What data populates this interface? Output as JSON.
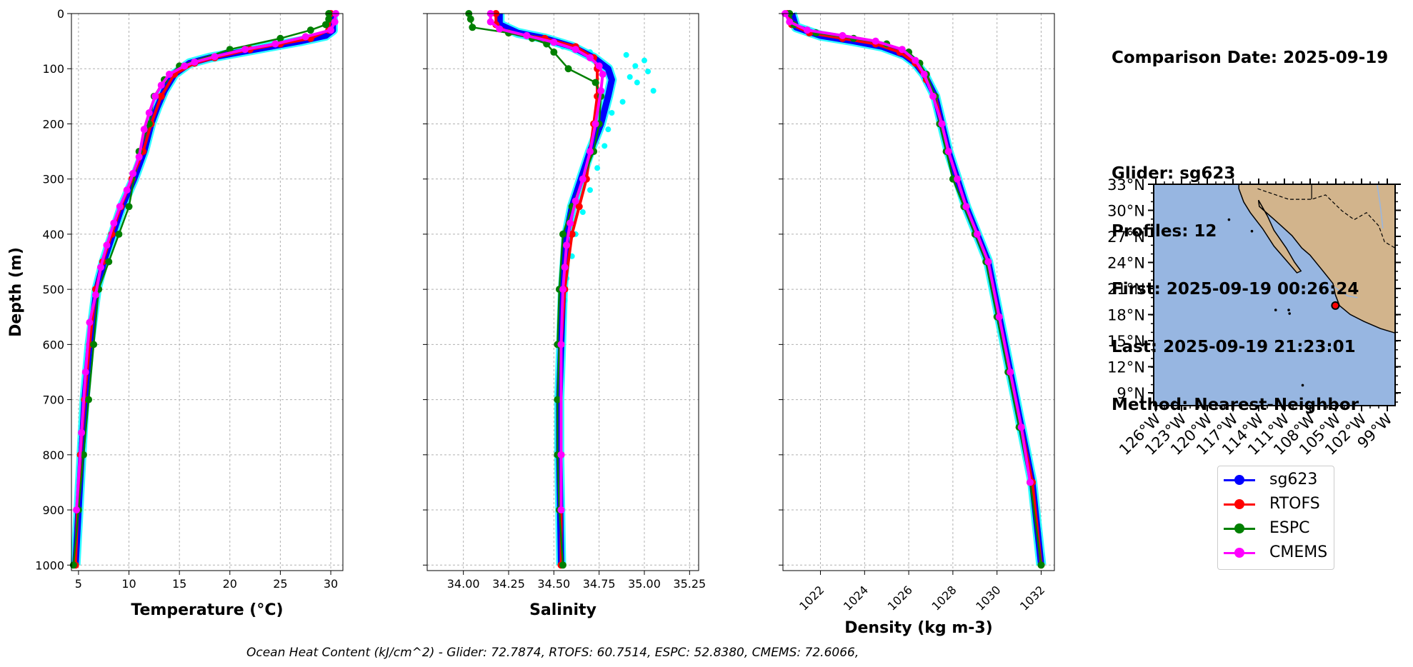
{
  "colors": {
    "sg623": "#0000ff",
    "sg623_scatter": "#00ffff",
    "RTOFS": "#ff0000",
    "ESPC": "#008000",
    "CMEMS": "#ff00ff",
    "ocean": "#97b6e1",
    "land": "#d2b48c"
  },
  "info": {
    "comparison_date": "Comparison Date: 2025-09-19",
    "glider": "Glider: sg623",
    "profiles": "Profiles: 12",
    "first": "First: 2025-09-19 00:26:24",
    "last": "Last: 2025-09-19 21:23:01",
    "method": "Method: Nearest-Neighbor"
  },
  "footer": "Ocean Heat Content (kJ/cm^2) - Glider: 72.7874,  RTOFS: 60.7514,  ESPC: 52.8380,  CMEMS: 72.6066,",
  "legend": [
    {
      "name": "sg623",
      "color": "#0000ff"
    },
    {
      "name": "RTOFS",
      "color": "#ff0000"
    },
    {
      "name": "ESPC",
      "color": "#008000"
    },
    {
      "name": "CMEMS",
      "color": "#ff00ff"
    }
  ],
  "chart_data": [
    {
      "type": "line",
      "xlabel": "Temperature (°C)",
      "ylabel": "Depth (m)",
      "xlim": [
        4.3,
        31.2
      ],
      "ylim": [
        1010,
        0
      ],
      "xticks": [
        5,
        10,
        15,
        20,
        25,
        30
      ],
      "yticks": [
        0,
        100,
        200,
        300,
        400,
        500,
        600,
        700,
        800,
        900,
        1000
      ],
      "grid": true,
      "series": [
        {
          "name": "sg623",
          "x": [
            30.2,
            30.2,
            29.5,
            27,
            24,
            21,
            18,
            16,
            14.5,
            13.5,
            12.8,
            12.2,
            11.5,
            10.5,
            9.3,
            8.4,
            7.5,
            6.8,
            6.1,
            5.6,
            5.3,
            5.0,
            4.7
          ],
          "y": [
            0,
            30,
            40,
            50,
            60,
            70,
            80,
            90,
            110,
            140,
            170,
            200,
            250,
            300,
            350,
            400,
            450,
            500,
            600,
            700,
            800,
            900,
            1000
          ]
        },
        {
          "name": "RTOFS",
          "x": [
            30,
            29.8,
            28,
            25,
            22,
            18.5,
            16.5,
            14.5,
            13.2,
            12.2,
            11.4,
            10.3,
            9.2,
            8.3,
            7.4,
            6.7,
            6.1,
            5.6,
            5.2,
            4.9,
            4.7
          ],
          "y": [
            0,
            30,
            45,
            55,
            65,
            80,
            90,
            110,
            150,
            200,
            250,
            300,
            350,
            400,
            450,
            500,
            600,
            700,
            800,
            900,
            1000
          ]
        },
        {
          "name": "ESPC",
          "x": [
            29.8,
            29.8,
            29.5,
            28,
            25,
            20,
            15,
            13.5,
            12.5,
            12.0,
            11.0,
            10.0,
            9.0,
            8.0,
            7.0,
            6.5,
            6.0,
            5.5,
            5.0,
            4.5
          ],
          "y": [
            0,
            10,
            20,
            30,
            45,
            65,
            95,
            120,
            150,
            200,
            250,
            350,
            400,
            450,
            500,
            600,
            700,
            800,
            900,
            1000
          ]
        },
        {
          "name": "CMEMS",
          "x": [
            30.5,
            30.4,
            30.0,
            27.5,
            24.5,
            21.5,
            18.5,
            16.5,
            15.5,
            14,
            13.2,
            12.6,
            12.0,
            11.5,
            11.0,
            10.4,
            9.8,
            9.1,
            8.5,
            7.8,
            7.2,
            6.7,
            6.1,
            5.7,
            5.3,
            4.8
          ],
          "y": [
            0,
            15,
            30,
            42,
            55,
            65,
            78,
            88,
            95,
            110,
            130,
            150,
            180,
            210,
            260,
            290,
            320,
            350,
            380,
            420,
            460,
            510,
            560,
            650,
            760,
            900
          ]
        }
      ]
    },
    {
      "type": "line",
      "xlabel": "Salinity",
      "xlim": [
        33.8,
        35.3
      ],
      "ylim": [
        1010,
        0
      ],
      "xticks": [
        34.0,
        34.25,
        34.5,
        34.75,
        35.0,
        35.25
      ],
      "yticks": [
        0,
        100,
        200,
        300,
        400,
        500,
        600,
        700,
        800,
        900,
        1000
      ],
      "grid": true,
      "series": [
        {
          "name": "sg623",
          "x": [
            34.2,
            34.2,
            34.3,
            34.45,
            34.6,
            34.72,
            34.8,
            34.82,
            34.8,
            34.76,
            34.7,
            34.65,
            34.6,
            34.57,
            34.55,
            34.54,
            34.53,
            34.53,
            34.54
          ],
          "y": [
            0,
            20,
            35,
            45,
            60,
            80,
            100,
            120,
            150,
            200,
            250,
            300,
            350,
            400,
            500,
            600,
            700,
            800,
            1000
          ]
        },
        {
          "name": "RTOFS",
          "x": [
            34.18,
            34.18,
            34.25,
            34.45,
            34.62,
            34.72,
            34.74,
            34.74,
            34.72,
            34.68,
            34.64,
            34.6,
            34.56,
            34.54,
            34.54,
            34.54
          ],
          "y": [
            0,
            20,
            35,
            45,
            60,
            80,
            100,
            150,
            200,
            300,
            350,
            400,
            500,
            600,
            800,
            1000
          ]
        },
        {
          "name": "ESPC",
          "x": [
            34.03,
            34.04,
            34.05,
            34.25,
            34.38,
            34.46,
            34.5,
            34.58,
            34.73,
            34.76,
            34.75,
            34.72,
            34.66,
            34.6,
            34.55,
            34.53,
            34.52,
            34.53,
            34.52,
            34.52,
            34.53,
            34.55
          ],
          "y": [
            0,
            10,
            25,
            35,
            45,
            55,
            70,
            100,
            125,
            150,
            200,
            250,
            300,
            350,
            400,
            500,
            600,
            600,
            700,
            800,
            900,
            1000
          ]
        },
        {
          "name": "CMEMS",
          "x": [
            34.15,
            34.15,
            34.2,
            34.35,
            34.5,
            34.62,
            34.7,
            34.75,
            34.77,
            34.76,
            34.73,
            34.7,
            34.66,
            34.62,
            34.59,
            34.57,
            34.56,
            34.55,
            34.54,
            34.54,
            34.54
          ],
          "y": [
            0,
            15,
            28,
            40,
            52,
            65,
            80,
            95,
            110,
            140,
            200,
            250,
            300,
            340,
            380,
            420,
            460,
            500,
            600,
            800,
            900
          ]
        }
      ]
    },
    {
      "type": "line",
      "xlabel": "Density (kg m-3)",
      "xlim": [
        1020.3,
        1032.6
      ],
      "ylim": [
        1010,
        0
      ],
      "xticks": [
        1022,
        1024,
        1026,
        1028,
        1030,
        1032
      ],
      "yticks": [
        0,
        100,
        200,
        300,
        400,
        500,
        600,
        700,
        800,
        900,
        1000
      ],
      "grid": true,
      "series": [
        {
          "name": "sg623",
          "x": [
            1020.7,
            1020.9,
            1022,
            1023.5,
            1024.8,
            1025.8,
            1026.3,
            1026.7,
            1027.2,
            1027.5,
            1027.8,
            1028.2,
            1028.6,
            1029.1,
            1029.6,
            1030.1,
            1030.6,
            1031.1,
            1031.6,
            1032.0
          ],
          "y": [
            0,
            25,
            40,
            50,
            60,
            75,
            90,
            110,
            150,
            200,
            250,
            300,
            350,
            400,
            450,
            550,
            650,
            750,
            850,
            1000
          ]
        },
        {
          "name": "RTOFS",
          "x": [
            1020.5,
            1020.7,
            1021.5,
            1023,
            1024.5,
            1025.6,
            1026.3,
            1026.8,
            1027.2,
            1027.5,
            1027.8,
            1028.2,
            1028.6,
            1029.1,
            1029.6,
            1030.1,
            1030.6,
            1031.1,
            1031.6,
            1032.0
          ],
          "y": [
            0,
            20,
            35,
            45,
            55,
            70,
            90,
            120,
            150,
            200,
            250,
            300,
            350,
            400,
            450,
            550,
            650,
            750,
            850,
            1000
          ]
        },
        {
          "name": "ESPC",
          "x": [
            1020.6,
            1020.8,
            1021.8,
            1023.5,
            1025.0,
            1026.0,
            1026.5,
            1026.8,
            1027.2,
            1027.4,
            1027.7,
            1028.0,
            1028.5,
            1029.0,
            1029.5,
            1030.0,
            1030.5,
            1031.0,
            1031.5,
            1032.0
          ],
          "y": [
            0,
            20,
            35,
            45,
            55,
            70,
            90,
            110,
            150,
            200,
            250,
            300,
            350,
            400,
            450,
            550,
            650,
            750,
            850,
            1000
          ]
        },
        {
          "name": "CMEMS",
          "x": [
            1020.4,
            1020.6,
            1021.4,
            1023,
            1024.5,
            1025.7,
            1026.3,
            1026.7,
            1027.1,
            1027.5,
            1027.8,
            1028.2,
            1028.6,
            1029.1,
            1029.6,
            1030.1,
            1030.6,
            1031.1,
            1031.5
          ],
          "y": [
            0,
            15,
            30,
            40,
            50,
            65,
            85,
            110,
            150,
            200,
            250,
            300,
            350,
            400,
            450,
            550,
            650,
            750,
            850
          ]
        }
      ]
    },
    {
      "type": "map",
      "lat_ticks": [
        "33°N",
        "30°N",
        "27°N",
        "24°N",
        "21°N",
        "18°N",
        "15°N",
        "12°N",
        "9°N"
      ],
      "lon_ticks": [
        "126°W",
        "123°W",
        "120°W",
        "117°W",
        "114°W",
        "111°W",
        "108°W",
        "105°W",
        "102°W",
        "99°W"
      ],
      "lat_range": [
        8,
        33
      ],
      "lon_range": [
        -127.5,
        -98
      ],
      "marker": {
        "lon": -105.3,
        "lat": 19.3
      }
    }
  ]
}
